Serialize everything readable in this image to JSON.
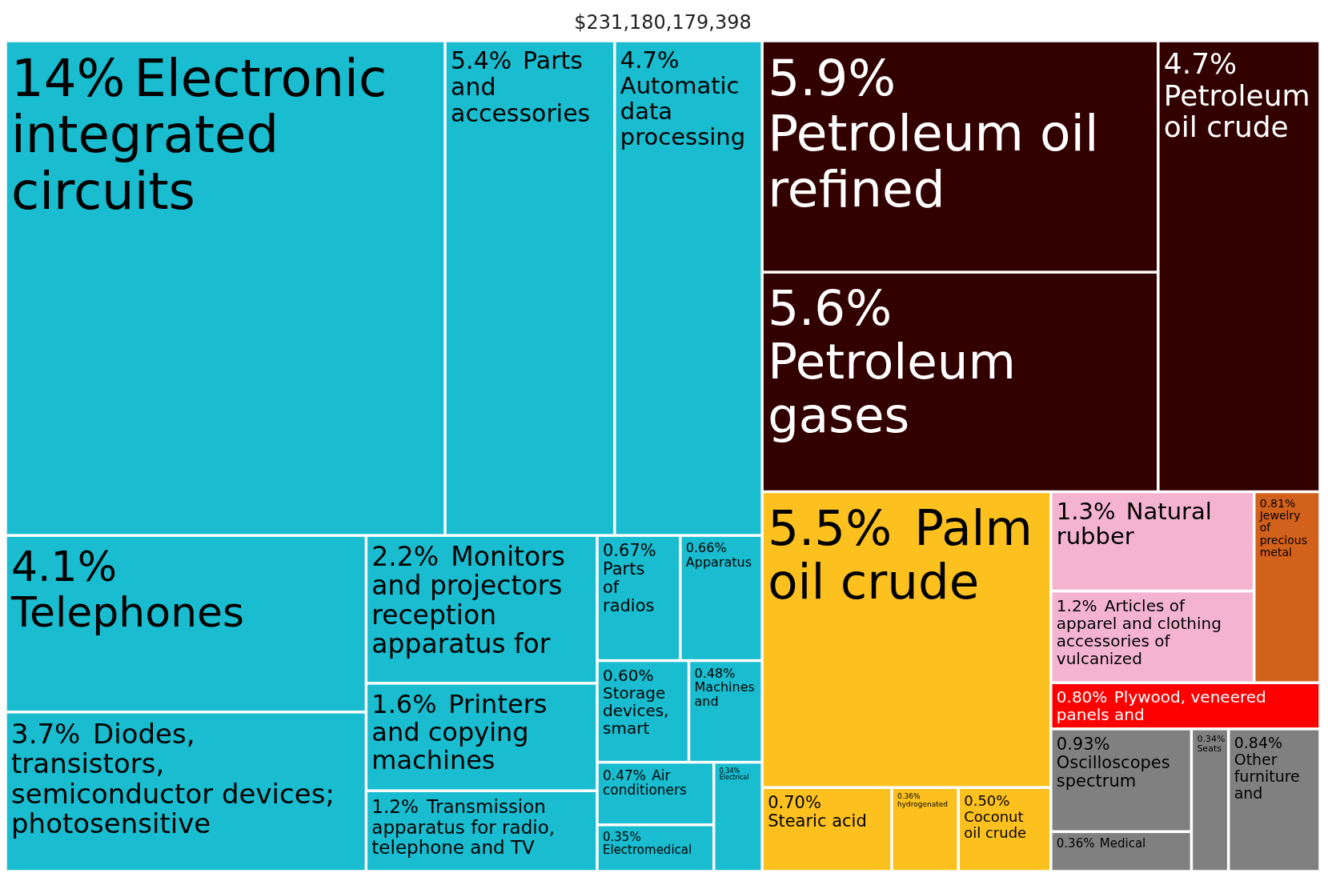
{
  "chart_data": {
    "type": "other",
    "title": "$231,180,179,398",
    "categories": [
      "Electronic integrated circuits",
      "Parts and accessories",
      "Automatic data processing",
      "Telephones",
      "Diodes, transistors, semiconductor devices; photosensitive",
      "Monitors and projectors reception apparatus for",
      "Printers and copying machines",
      "Transmission apparatus for radio, telephone and TV",
      "Parts of radios",
      "Apparatus",
      "Storage devices, smart",
      "Machines and",
      "Air conditioners",
      "Electromedical",
      "Electrical",
      "Petroleum oil refined",
      "Petroleum gases",
      "Petroleum oil crude",
      "Palm oil crude",
      "Stearic acid",
      "hydrogenated",
      "Coconut oil crude",
      "Natural rubber",
      "Articles of apparel and clothing accessories of vulcanized",
      "Jewelry of precious metal",
      "Plywood, veneered panels and",
      "Oscilloscopes spectrum",
      "Medical",
      "Seats",
      "Other furniture and"
    ],
    "values": [
      14,
      5.4,
      4.7,
      4.1,
      3.7,
      2.2,
      1.6,
      1.2,
      0.67,
      0.66,
      0.6,
      0.48,
      0.47,
      0.35,
      0.34,
      5.9,
      5.6,
      4.7,
      5.5,
      0.7,
      0.36,
      0.5,
      1.3,
      1.2,
      0.81,
      0.8,
      0.93,
      0.36,
      0.34,
      0.84
    ],
    "value_labels": [
      "14%",
      "5.4%",
      "4.7%",
      "4.1%",
      "3.7%",
      "2.2%",
      "1.6%",
      "1.2%",
      "0.67%",
      "0.66%",
      "0.60%",
      "0.48%",
      "0.47%",
      "0.35%",
      "0.34%",
      "5.9%",
      "5.6%",
      "4.7%",
      "5.5%",
      "0.70%",
      "0.36%",
      "0.50%",
      "1.3%",
      "1.2%",
      "0.81%",
      "0.80%",
      "0.93%",
      "0.36%",
      "0.34%",
      "0.84%"
    ],
    "colors": [
      "#1abccf",
      "#1abccf",
      "#1abccf",
      "#1abccf",
      "#1abccf",
      "#1abccf",
      "#1abccf",
      "#1abccf",
      "#1abccf",
      "#1abccf",
      "#1abccf",
      "#1abccf",
      "#1abccf",
      "#1abccf",
      "#1abccf",
      "#330000",
      "#330000",
      "#330000",
      "#fdc11f",
      "#fdc11f",
      "#fdc11f",
      "#fdc11f",
      "#f4b4d0",
      "#f4b4d0",
      "#d2611b",
      "#ff0000",
      "#808080",
      "#808080",
      "#808080",
      "#808080"
    ]
  }
}
